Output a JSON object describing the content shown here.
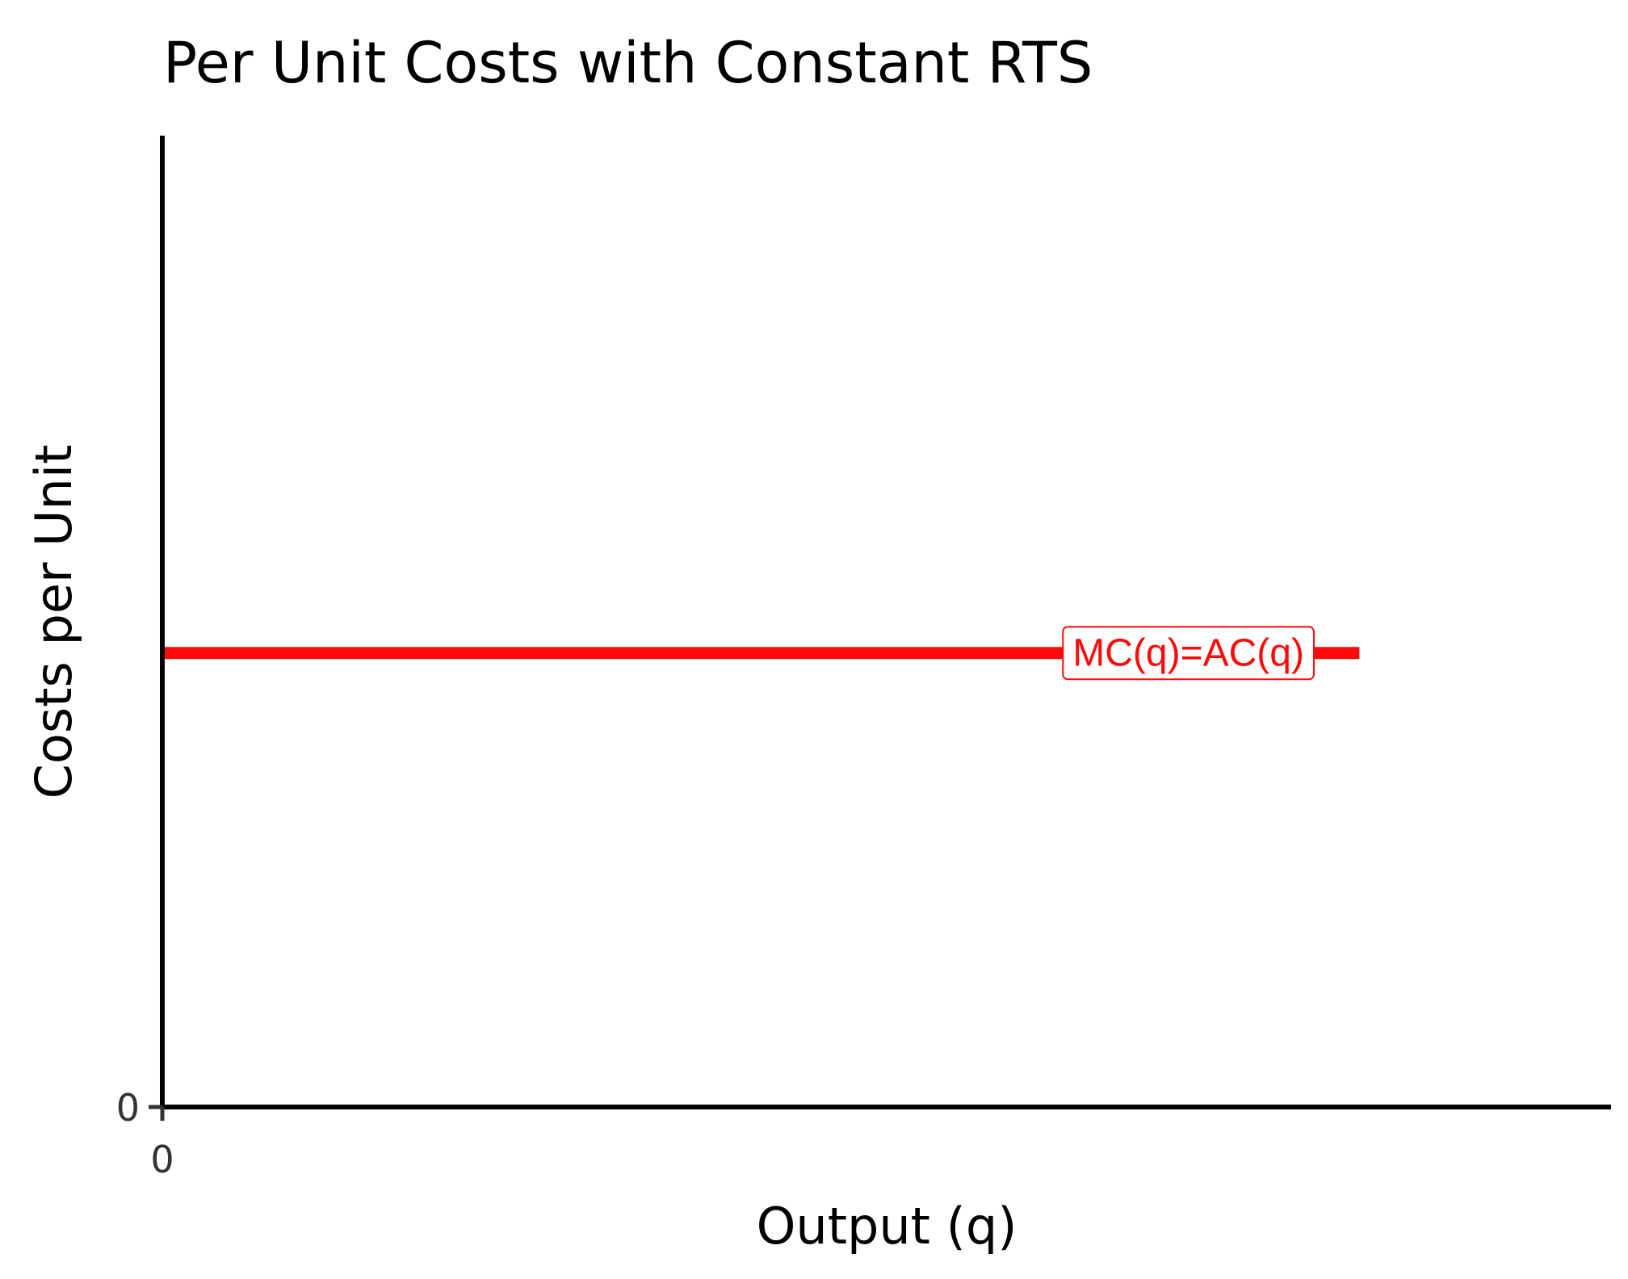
{
  "chart_data": {
    "type": "line",
    "title": "Per Unit Costs with Constant RTS",
    "xlabel": "Output (q)",
    "ylabel": "Costs per Unit",
    "x_ticks": [
      "0"
    ],
    "y_ticks": [
      "0"
    ],
    "xlim": [
      0,
      10
    ],
    "ylim": [
      0,
      10
    ],
    "grid": false,
    "series": [
      {
        "name": "MC(q)=AC(q)",
        "color": "#ff0a0a",
        "x": [
          0,
          9.1
        ],
        "y": [
          6,
          6
        ],
        "label_at_x": 7.8
      }
    ]
  }
}
